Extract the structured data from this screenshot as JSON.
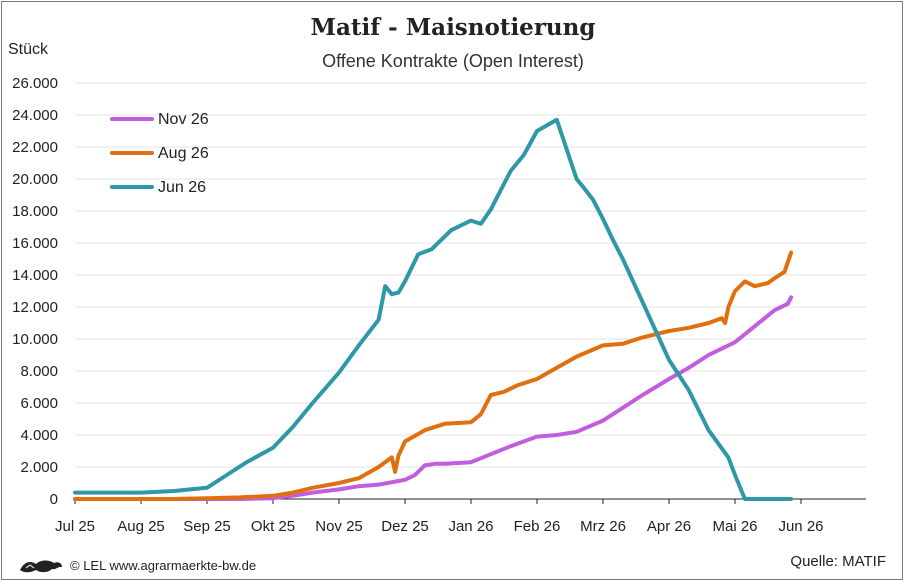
{
  "title": "Matif - Maisnotierung",
  "subtitle": "Offene Kontrakte (Open Interest)",
  "footer": "© LEL www.agrarmaerkte-bw.de",
  "source": "Quelle: MATIF",
  "chart_data": {
    "type": "line",
    "ylabel": "Stück",
    "ylim": [
      0,
      26000
    ],
    "yticks": [
      0,
      2000,
      4000,
      6000,
      8000,
      10000,
      12000,
      14000,
      16000,
      18000,
      20000,
      22000,
      24000,
      26000
    ],
    "ytick_labels": [
      "0",
      "2.000",
      "4.000",
      "6.000",
      "8.000",
      "10.000",
      "12.000",
      "14.000",
      "16.000",
      "18.000",
      "20.000",
      "22.000",
      "24.000",
      "26.000"
    ],
    "xticks": [
      "Jul 25",
      "Aug 25",
      "Sep 25",
      "Okt 25",
      "Nov 25",
      "Dez 25",
      "Jan 26",
      "Feb 26",
      "Mrz 26",
      "Apr 26",
      "Mai 26",
      "Jun 26"
    ],
    "grid": true,
    "legend_position": "top-left",
    "series": [
      {
        "name": "Nov 26",
        "color": "#c25ddd",
        "x": [
          0,
          0.5,
          1,
          1.5,
          2,
          2.5,
          3,
          3.3,
          3.6,
          4,
          4.3,
          4.6,
          5,
          5.15,
          5.3,
          5.45,
          5.6,
          6,
          6.3,
          6.6,
          7,
          7.3,
          7.6,
          8,
          8.3,
          8.6,
          9,
          9.3,
          9.6,
          10,
          10.3,
          10.6,
          10.8,
          10.85
        ],
        "values": [
          0,
          0,
          0,
          0,
          0,
          0,
          50,
          200,
          400,
          600,
          800,
          900,
          1200,
          1500,
          2100,
          2200,
          2200,
          2300,
          2800,
          3300,
          3900,
          4000,
          4200,
          4900,
          5700,
          6500,
          7500,
          8200,
          9000,
          9800,
          10800,
          11800,
          12200,
          12600
        ]
      },
      {
        "name": "Aug 26",
        "color": "#e0700f",
        "x": [
          0,
          1,
          1.5,
          2,
          2.5,
          3,
          3.3,
          3.6,
          4,
          4.3,
          4.6,
          4.8,
          4.85,
          4.9,
          5,
          5.3,
          5.6,
          6,
          6.15,
          6.3,
          6.5,
          6.7,
          7,
          7.3,
          7.6,
          8,
          8.3,
          8.6,
          9,
          9.3,
          9.6,
          9.8,
          9.85,
          9.9,
          10,
          10.15,
          10.3,
          10.5,
          10.6,
          10.75,
          10.85
        ],
        "values": [
          0,
          0,
          0,
          50,
          100,
          200,
          400,
          700,
          1000,
          1300,
          2000,
          2600,
          1700,
          2700,
          3600,
          4300,
          4700,
          4800,
          5300,
          6500,
          6700,
          7100,
          7500,
          8200,
          8900,
          9600,
          9700,
          10100,
          10500,
          10700,
          11000,
          11300,
          11000,
          12000,
          13000,
          13600,
          13300,
          13500,
          13800,
          14200,
          15400
        ]
      },
      {
        "name": "Jun 26",
        "color": "#2f98a8",
        "x": [
          0,
          0.5,
          1,
          1.5,
          2,
          2.3,
          2.6,
          3,
          3.3,
          3.6,
          4,
          4.3,
          4.6,
          4.7,
          4.8,
          4.9,
          5,
          5.2,
          5.4,
          5.7,
          6,
          6.15,
          6.3,
          6.6,
          6.8,
          7,
          7.3,
          7.6,
          7.7,
          7.85,
          8,
          8.15,
          8.3,
          8.5,
          8.6,
          8.8,
          9,
          9.3,
          9.6,
          9.9,
          10,
          10.15,
          10.3,
          10.45,
          10.55,
          10.7,
          10.8,
          10.85
        ],
        "values": [
          400,
          400,
          400,
          500,
          700,
          1500,
          2300,
          3200,
          4500,
          6000,
          7900,
          9600,
          11200,
          13300,
          12800,
          12900,
          13600,
          15300,
          15600,
          16800,
          17400,
          17200,
          18100,
          20500,
          21500,
          23000,
          23700,
          20000,
          19500,
          18700,
          17500,
          16200,
          15000,
          13200,
          12300,
          10500,
          8700,
          6800,
          4300,
          2600,
          1500,
          0,
          0,
          0,
          0,
          0,
          0,
          0
        ]
      }
    ]
  }
}
